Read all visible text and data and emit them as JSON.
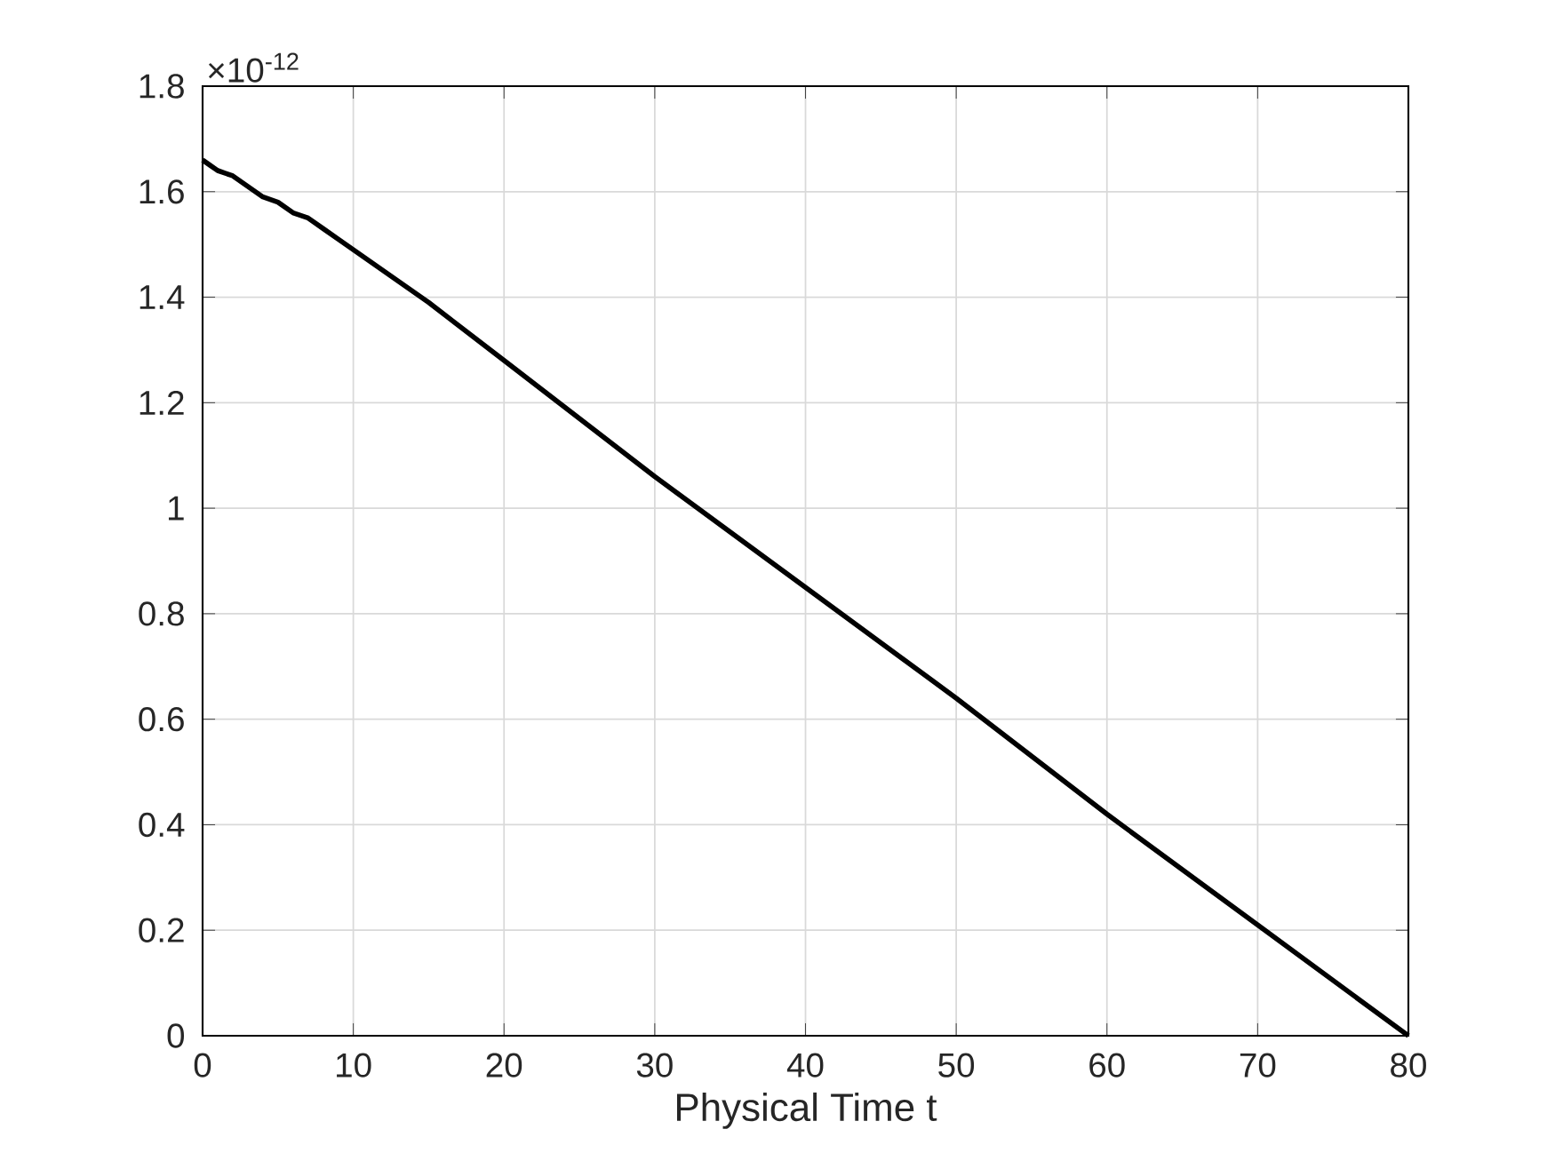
{
  "chart_data": {
    "type": "line",
    "xlabel": "Physical Time t",
    "annotations": [
      "×10$^{-12}$"
    ],
    "x": [
      0,
      0.5,
      1,
      2,
      3,
      4,
      5,
      6,
      7,
      8,
      9,
      10,
      12,
      15,
      20,
      30,
      40,
      50,
      60,
      70,
      80
    ],
    "series": [
      {
        "color": "#000000",
        "values": [
          1.66,
          1.65,
          1.64,
          1.63,
          1.61,
          1.59,
          1.58,
          1.56,
          1.55,
          1.53,
          1.51,
          1.49,
          1.45,
          1.39,
          1.28,
          1.06,
          0.85,
          0.64,
          0.42,
          0.21,
          0
        ]
      }
    ],
    "xlim": [
      0,
      80
    ],
    "xticks": [
      0,
      10,
      20,
      30,
      40,
      50,
      60,
      70,
      80
    ],
    "ylim": [
      0,
      1.8
    ],
    "yticks": [
      0,
      0.2,
      0.4,
      0.6,
      0.8,
      1,
      1.2,
      1.4,
      1.6,
      1.8
    ],
    "grid": true,
    "marker": "none",
    "line_style": "solid"
  }
}
